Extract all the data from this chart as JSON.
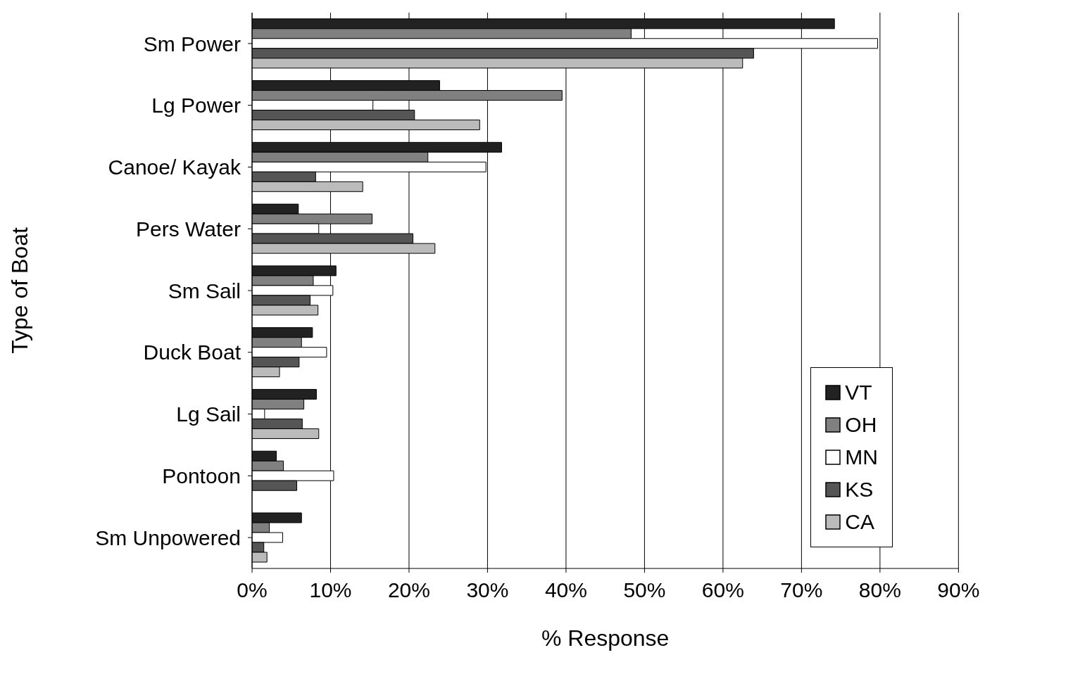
{
  "chart_data": {
    "type": "bar",
    "orientation": "horizontal",
    "xlabel": "% Response",
    "ylabel": "Type of Boat",
    "categories": [
      "Sm Power",
      "Lg Power",
      "Canoe/ Kayak",
      "Pers Water",
      "Sm Sail",
      "Duck Boat",
      "Lg Sail",
      "Pontoon",
      "Sm Unpowered"
    ],
    "series": [
      {
        "name": "VT",
        "color": "#222222",
        "values": [
          74.2,
          23.9,
          31.8,
          5.9,
          10.7,
          7.7,
          8.2,
          3.1,
          6.3
        ]
      },
      {
        "name": "OH",
        "color": "#808080",
        "values": [
          48.3,
          39.5,
          22.4,
          15.3,
          7.8,
          6.3,
          6.6,
          4.0,
          2.2
        ]
      },
      {
        "name": "MN",
        "color": "#ffffff",
        "values": [
          79.7,
          15.4,
          29.8,
          8.5,
          10.3,
          9.5,
          1.6,
          10.4,
          3.9
        ]
      },
      {
        "name": "KS",
        "color": "#555555",
        "values": [
          63.9,
          20.7,
          8.1,
          20.5,
          7.4,
          6.0,
          6.4,
          5.7,
          1.5
        ]
      },
      {
        "name": "CA",
        "color": "#bbbbbb",
        "values": [
          62.5,
          29.0,
          14.1,
          23.3,
          8.4,
          3.5,
          8.5,
          null,
          1.9
        ]
      }
    ],
    "xlim": [
      0,
      90
    ],
    "xticks": [
      {
        "value": 0,
        "label": "0%"
      },
      {
        "value": 10,
        "label": "10%"
      },
      {
        "value": 20,
        "label": "20%"
      },
      {
        "value": 30,
        "label": "30%"
      },
      {
        "value": 40,
        "label": "40%"
      },
      {
        "value": 50,
        "label": "50%"
      },
      {
        "value": 60,
        "label": "60%"
      },
      {
        "value": 70,
        "label": "70%"
      },
      {
        "value": 80,
        "label": "80%"
      },
      {
        "value": 90,
        "label": "90%"
      }
    ],
    "grid": "x",
    "legend": "bottom right"
  }
}
